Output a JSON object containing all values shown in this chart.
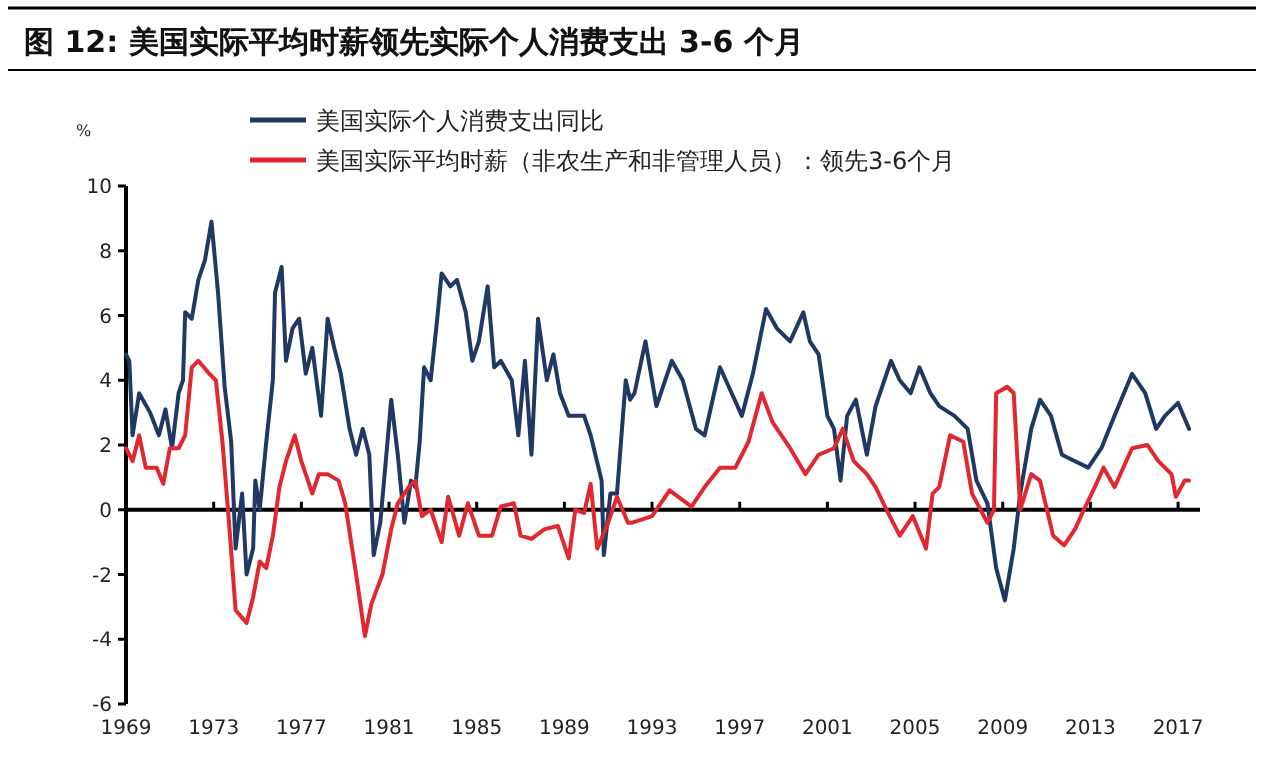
{
  "chart_data": {
    "type": "line",
    "title": "图 12:  美国实际平均时薪领先实际个人消费支出 3-6 个月",
    "ylabel": "%",
    "xlim": [
      1969,
      2018
    ],
    "ylim": [
      -6,
      10
    ],
    "xticks": [
      1969,
      1973,
      1977,
      1981,
      1985,
      1989,
      1993,
      1997,
      2001,
      2005,
      2009,
      2013,
      2017
    ],
    "yticks": [
      -6,
      -4,
      -2,
      0,
      2,
      4,
      6,
      8,
      10
    ],
    "legend": "top",
    "ref_lines": [
      {
        "axis": "y",
        "value": 0,
        "color": "#000000"
      }
    ],
    "series": [
      {
        "name": "美国实际个人消费支出同比",
        "color": "#1f3864",
        "x": [
          1969.0,
          1969.15,
          1969.3,
          1969.6,
          1970.1,
          1970.5,
          1970.8,
          1971.1,
          1971.4,
          1971.6,
          1971.7,
          1972.0,
          1972.3,
          1972.6,
          1972.9,
          1973.2,
          1973.5,
          1973.8,
          1974.0,
          1974.3,
          1974.5,
          1974.8,
          1974.9,
          1975.1,
          1975.4,
          1975.7,
          1975.8,
          1976.1,
          1976.3,
          1976.6,
          1976.9,
          1977.2,
          1977.5,
          1977.9,
          1978.2,
          1978.5,
          1978.8,
          1979.2,
          1979.5,
          1979.8,
          1980.1,
          1980.3,
          1980.6,
          1980.8,
          1981.1,
          1981.4,
          1981.7,
          1982.0,
          1982.2,
          1982.4,
          1982.6,
          1982.9,
          1983.2,
          1983.4,
          1983.8,
          1984.1,
          1984.5,
          1984.8,
          1985.1,
          1985.5,
          1985.8,
          1986.1,
          1986.6,
          1986.9,
          1987.2,
          1987.5,
          1987.8,
          1988.2,
          1988.5,
          1988.8,
          1989.2,
          1989.6,
          1989.9,
          1990.2,
          1990.7,
          1990.8,
          1991.1,
          1991.4,
          1991.8,
          1992.0,
          1992.2,
          1992.7,
          1993.2,
          1993.9,
          1994.4,
          1995.0,
          1995.4,
          1996.1,
          1996.5,
          1997.1,
          1997.6,
          1998.2,
          1998.7,
          1999.3,
          1999.9,
          2000.2,
          2000.6,
          2001.0,
          2001.3,
          2001.6,
          2001.9,
          2002.3,
          2002.8,
          2003.2,
          2003.9,
          2004.3,
          2004.8,
          2005.2,
          2005.7,
          2006.1,
          2006.8,
          2007.4,
          2007.8,
          2008.3,
          2008.7,
          2009.1,
          2009.5,
          2009.8,
          2010.3,
          2010.7,
          2011.2,
          2011.7,
          2012.3,
          2012.9,
          2013.5,
          2014.1,
          2014.9,
          2015.5,
          2016.0,
          2016.4,
          2017.0,
          2017.5
        ],
        "values": [
          4.8,
          4.6,
          2.3,
          3.6,
          3.0,
          2.3,
          3.1,
          1.9,
          3.6,
          4.0,
          6.1,
          5.9,
          7.1,
          7.7,
          8.9,
          6.7,
          3.8,
          2.1,
          -1.2,
          0.5,
          -2.0,
          -1.2,
          0.9,
          0.0,
          2.1,
          4.0,
          6.7,
          7.5,
          4.6,
          5.6,
          5.9,
          4.2,
          5.0,
          2.9,
          5.9,
          5.0,
          4.2,
          2.5,
          1.7,
          2.5,
          1.7,
          -1.4,
          -0.4,
          1.1,
          3.4,
          1.7,
          -0.4,
          0.9,
          0.7,
          2.1,
          4.4,
          4.0,
          5.9,
          7.3,
          6.9,
          7.1,
          6.1,
          4.6,
          5.2,
          6.9,
          4.4,
          4.6,
          4.0,
          2.3,
          4.6,
          1.7,
          5.9,
          4.0,
          4.8,
          3.6,
          2.9,
          2.9,
          2.9,
          2.3,
          0.9,
          -1.4,
          0.5,
          0.5,
          4.0,
          3.4,
          3.6,
          5.2,
          3.2,
          4.6,
          4.0,
          2.5,
          2.3,
          4.4,
          3.8,
          2.9,
          4.2,
          6.2,
          5.6,
          5.2,
          6.1,
          5.2,
          4.8,
          2.9,
          2.5,
          0.9,
          2.9,
          3.4,
          1.7,
          3.2,
          4.6,
          4.0,
          3.6,
          4.4,
          3.6,
          3.2,
          2.9,
          2.5,
          0.9,
          0.2,
          -1.8,
          -2.8,
          -1.2,
          0.5,
          2.5,
          3.4,
          2.9,
          1.7,
          1.5,
          1.3,
          1.9,
          2.9,
          4.2,
          3.6,
          2.5,
          2.9,
          3.3,
          2.5
        ]
      },
      {
        "name": "美国实际平均时薪（非农生产和非管理人员）：领先3-6个月",
        "color": "#e0282e",
        "x": [
          1969.0,
          1969.3,
          1969.6,
          1969.9,
          1970.4,
          1970.7,
          1971.0,
          1971.4,
          1971.7,
          1972.0,
          1972.3,
          1972.8,
          1973.1,
          1973.4,
          1973.7,
          1974.0,
          1974.5,
          1974.8,
          1975.1,
          1975.4,
          1975.7,
          1976.0,
          1976.3,
          1976.7,
          1977.0,
          1977.5,
          1977.8,
          1978.2,
          1978.7,
          1979.0,
          1979.5,
          1979.9,
          1980.2,
          1980.7,
          1981.1,
          1981.4,
          1981.9,
          1982.2,
          1982.5,
          1982.9,
          1983.4,
          1983.7,
          1984.2,
          1984.6,
          1985.1,
          1985.7,
          1986.1,
          1986.7,
          1987.0,
          1987.5,
          1988.1,
          1988.7,
          1989.2,
          1989.5,
          1989.9,
          1990.2,
          1990.5,
          1991.0,
          1991.4,
          1991.9,
          1992.1,
          1993.0,
          1993.8,
          1994.8,
          1995.4,
          1996.1,
          1996.8,
          1997.4,
          1998.0,
          1998.5,
          1999.3,
          2000.0,
          2000.6,
          2001.3,
          2001.7,
          2002.2,
          2002.8,
          2003.2,
          2003.7,
          2004.3,
          2004.9,
          2005.5,
          2005.8,
          2006.1,
          2006.6,
          2007.2,
          2007.6,
          2008.3,
          2008.6,
          2008.7,
          2009.2,
          2009.5,
          2009.8,
          2010.3,
          2010.7,
          2011.3,
          2011.8,
          2012.3,
          2012.7,
          2013.2,
          2013.6,
          2014.1,
          2014.9,
          2015.6,
          2016.1,
          2016.7,
          2016.9,
          2017.3,
          2017.5
        ],
        "values": [
          1.9,
          1.5,
          2.3,
          1.3,
          1.3,
          0.8,
          1.9,
          1.9,
          2.3,
          4.4,
          4.6,
          4.2,
          4.0,
          2.1,
          -0.4,
          -3.1,
          -3.5,
          -2.7,
          -1.6,
          -1.8,
          -0.8,
          0.7,
          1.5,
          2.3,
          1.5,
          0.5,
          1.1,
          1.1,
          0.9,
          0.2,
          -2.0,
          -3.9,
          -2.9,
          -2.0,
          -0.6,
          0.2,
          0.7,
          0.9,
          -0.2,
          0.0,
          -1.0,
          0.4,
          -0.8,
          0.2,
          -0.8,
          -0.8,
          0.1,
          0.2,
          -0.8,
          -0.9,
          -0.6,
          -0.5,
          -1.5,
          0.0,
          -0.1,
          0.8,
          -1.2,
          -0.4,
          0.4,
          -0.4,
          -0.4,
          -0.2,
          0.6,
          0.1,
          0.7,
          1.3,
          1.3,
          2.1,
          3.6,
          2.7,
          1.9,
          1.1,
          1.7,
          1.9,
          2.5,
          1.5,
          1.1,
          0.7,
          0.0,
          -0.8,
          -0.2,
          -1.2,
          0.5,
          0.7,
          2.3,
          2.1,
          0.5,
          -0.4,
          0.0,
          3.6,
          3.8,
          3.6,
          0.0,
          1.1,
          0.9,
          -0.8,
          -1.1,
          -0.6,
          0.0,
          0.7,
          1.3,
          0.7,
          1.9,
          2.0,
          1.5,
          1.1,
          0.4,
          0.9,
          0.9
        ]
      }
    ]
  }
}
